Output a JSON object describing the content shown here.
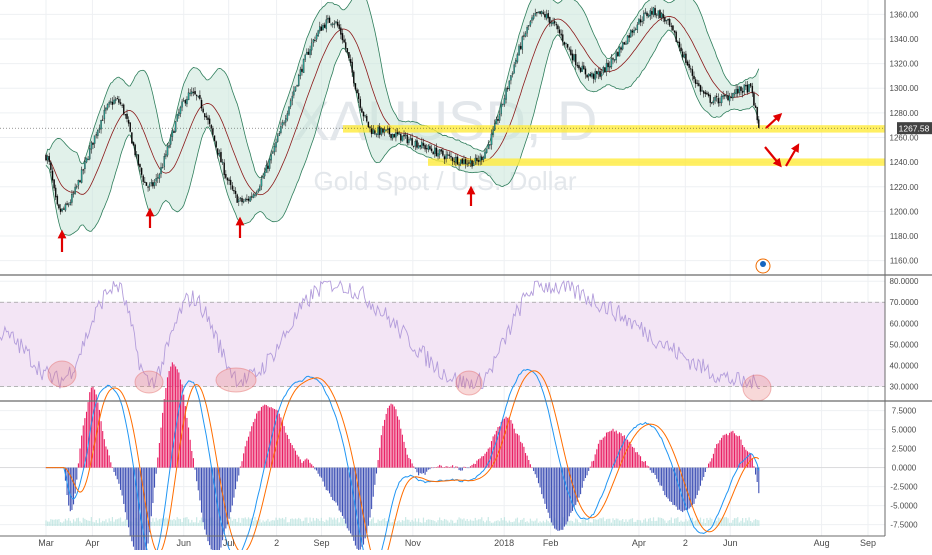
{
  "chart_data": [
    {
      "type": "candlestick",
      "panel": "price",
      "watermark_symbol": "XAUUSD, D",
      "watermark_name": "Gold Spot / U.S. Dollar",
      "ylim": [
        1150,
        1370
      ],
      "y_ticks": [
        1160,
        1180,
        1200,
        1220,
        1240,
        1260,
        1280,
        1300,
        1320,
        1340,
        1360
      ],
      "y_tick_labels": [
        "1160.00",
        "1180.00",
        "1200.00",
        "1220.00",
        "1240.00",
        "1260.00",
        "1280.00",
        "1300.00",
        "1320.00",
        "1340.00",
        "1360.00"
      ],
      "last_price_label": "1267.58",
      "last_price": 1267.58,
      "support_zones": [
        {
          "from": 1264,
          "to": 1270
        },
        {
          "from": 1237,
          "to": 1243
        }
      ],
      "key_closes": [
        {
          "date": "2017-03-01",
          "close": 1245
        },
        {
          "date": "2017-03-10",
          "close": 1200
        },
        {
          "date": "2017-04-17",
          "close": 1290
        },
        {
          "date": "2017-05-09",
          "close": 1220
        },
        {
          "date": "2017-06-06",
          "close": 1295
        },
        {
          "date": "2017-07-10",
          "close": 1208
        },
        {
          "date": "2017-09-08",
          "close": 1355
        },
        {
          "date": "2017-10-06",
          "close": 1265
        },
        {
          "date": "2017-12-12",
          "close": 1240
        },
        {
          "date": "2018-01-25",
          "close": 1360
        },
        {
          "date": "2018-03-01",
          "close": 1310
        },
        {
          "date": "2018-04-11",
          "close": 1362
        },
        {
          "date": "2018-05-21",
          "close": 1290
        },
        {
          "date": "2018-06-14",
          "close": 1300
        },
        {
          "date": "2018-06-21",
          "close": 1267.58
        }
      ]
    },
    {
      "type": "line",
      "panel": "rsi",
      "ylim": [
        24,
        82
      ],
      "y_ticks": [
        30,
        40,
        50,
        60,
        70,
        80
      ],
      "y_tick_labels": [
        "30.0000",
        "40.0000",
        "50.0000",
        "60.0000",
        "70.0000",
        "80.0000"
      ],
      "band": [
        30,
        70
      ],
      "key_values": [
        {
          "date": "2017-03-10",
          "value": 33
        },
        {
          "date": "2017-04-17",
          "value": 78
        },
        {
          "date": "2017-05-09",
          "value": 32
        },
        {
          "date": "2017-06-06",
          "value": 72
        },
        {
          "date": "2017-07-10",
          "value": 33
        },
        {
          "date": "2017-09-08",
          "value": 79
        },
        {
          "date": "2017-12-12",
          "value": 31
        },
        {
          "date": "2018-01-25",
          "value": 78
        },
        {
          "date": "2018-06-21",
          "value": 31
        }
      ]
    },
    {
      "type": "macd",
      "panel": "macd",
      "ylim": [
        -9,
        8.5
      ],
      "y_ticks": [
        -7.5,
        -5,
        -2.5,
        0,
        2.5,
        5,
        7.5
      ],
      "y_tick_labels": [
        "-7.5000",
        "-5.0000",
        "-2.5000",
        "0.0000",
        "2.5000",
        "5.0000",
        "7.5000"
      ],
      "series": [
        {
          "color": "#2196f3"
        },
        {
          "color": "#ff6d00"
        }
      ]
    }
  ],
  "x_axis": {
    "labels": [
      "Mar",
      "Apr",
      "Jun",
      "Jul",
      "2",
      "Sep",
      "Nov",
      "2018",
      "Feb",
      "Apr",
      "2",
      "Jun",
      "Aug",
      "Sep"
    ],
    "dates": [
      "2017-03-01",
      "2017-04-01",
      "2017-06-01",
      "2017-07-01",
      "2017-08-02",
      "2017-09-01",
      "2017-11-01",
      "2018-01-01",
      "2018-02-01",
      "2018-04-01",
      "2018-05-02",
      "2018-06-01",
      "2018-08-01",
      "2018-09-01"
    ]
  },
  "annotations": {
    "arrow_color": "#e00000",
    "zone_color": "#ffeb3b",
    "rsi_highlight_color": "#e57373"
  },
  "colors": {
    "bull": "#26a69a",
    "bear": "#000000",
    "bollinger_fill": "#c8e6d8",
    "bollinger_line": "#2e7d5b",
    "ma_line": "#8b1a1a",
    "rsi_line": "#b39ddb",
    "rsi_fill": "#f3e5f5",
    "macd_hist_pos": "#e91e63",
    "macd_hist_neg": "#3f51b5"
  }
}
